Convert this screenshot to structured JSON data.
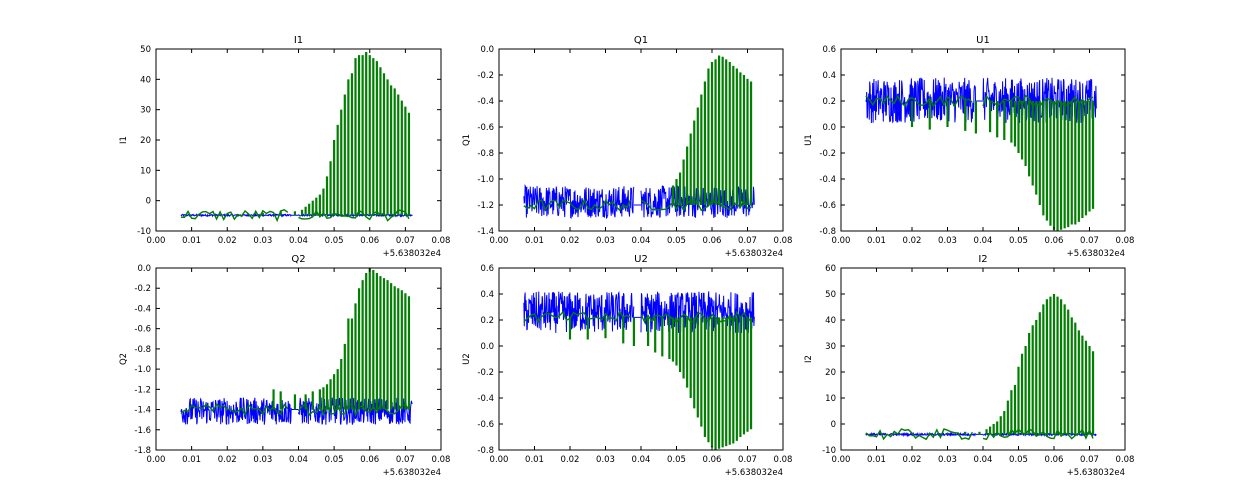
{
  "figure": {
    "x_offset_label": "+5.638032e4"
  },
  "chart_data": [
    {
      "type": "line",
      "title": "I1",
      "ylabel": "I1",
      "xlim": [
        0.0,
        0.08
      ],
      "ylim": [
        -10,
        50
      ],
      "xticks": [
        "0.00",
        "0.01",
        "0.02",
        "0.03",
        "0.04",
        "0.05",
        "0.06",
        "0.07",
        "0.08"
      ],
      "yticks": [
        "-10",
        "0",
        "10",
        "20",
        "30",
        "40",
        "50"
      ],
      "segments": [
        [
          0.007,
          0.038
        ],
        [
          0.04,
          0.072
        ]
      ],
      "series": [
        {
          "color": "#0000ff",
          "baseline": -4.8,
          "low": -5.1,
          "high": -4.5,
          "step": 0.00012,
          "style": "dense"
        },
        {
          "color": "#007f00",
          "baseline": -4.8,
          "step": 0.001,
          "style": "spikes",
          "x": [
            0.03,
            0.035,
            0.039,
            0.041,
            0.042,
            0.043,
            0.044,
            0.045,
            0.046,
            0.047,
            0.048,
            0.049,
            0.05,
            0.051,
            0.052,
            0.053,
            0.054,
            0.055,
            0.056,
            0.057,
            0.058,
            0.059,
            0.06,
            0.061,
            0.062,
            0.063,
            0.064,
            0.065,
            0.066,
            0.067,
            0.068,
            0.069,
            0.07,
            0.071
          ],
          "y": [
            -4,
            -3.5,
            -3.5,
            -3,
            -2,
            -1,
            0,
            1,
            2,
            4,
            8,
            13,
            20,
            25,
            30,
            35,
            40,
            42,
            47,
            48,
            48,
            49,
            48,
            47,
            46,
            44,
            42,
            40,
            38,
            37,
            35,
            33,
            31,
            29
          ]
        }
      ]
    },
    {
      "type": "line",
      "title": "Q1",
      "ylabel": "Q1",
      "xlim": [
        0.0,
        0.08
      ],
      "ylim": [
        -1.4,
        0.0
      ],
      "xticks": [
        "0.00",
        "0.01",
        "0.02",
        "0.03",
        "0.04",
        "0.05",
        "0.06",
        "0.07",
        "0.08"
      ],
      "yticks": [
        "-1.4",
        "-1.2",
        "-1.0",
        "-0.8",
        "-0.6",
        "-0.4",
        "-0.2",
        "0.0"
      ],
      "segments": [
        [
          0.007,
          0.038
        ],
        [
          0.04,
          0.072
        ]
      ],
      "series": [
        {
          "color": "#0000ff",
          "baseline": -1.2,
          "low": -1.3,
          "high": -1.05,
          "step": 0.00012,
          "style": "dense"
        },
        {
          "color": "#007f00",
          "baseline": -1.2,
          "step": 0.001,
          "style": "spikes",
          "x": [
            0.049,
            0.05,
            0.051,
            0.052,
            0.053,
            0.054,
            0.055,
            0.056,
            0.057,
            0.058,
            0.059,
            0.06,
            0.061,
            0.062,
            0.063,
            0.064,
            0.065,
            0.066,
            0.067,
            0.068,
            0.069,
            0.07,
            0.071
          ],
          "y": [
            -1.05,
            -1.0,
            -0.95,
            -0.85,
            -0.75,
            -0.65,
            -0.55,
            -0.45,
            -0.35,
            -0.25,
            -0.15,
            -0.1,
            -0.08,
            -0.05,
            -0.06,
            -0.08,
            -0.1,
            -0.13,
            -0.15,
            -0.18,
            -0.2,
            -0.23,
            -0.25
          ]
        }
      ]
    },
    {
      "type": "line",
      "title": "U1",
      "ylabel": "U1",
      "xlim": [
        0.0,
        0.08
      ],
      "ylim": [
        -0.8,
        0.6
      ],
      "xticks": [
        "0.00",
        "0.01",
        "0.02",
        "0.03",
        "0.04",
        "0.05",
        "0.06",
        "0.07",
        "0.08"
      ],
      "yticks": [
        "-0.8",
        "-0.6",
        "-0.4",
        "-0.2",
        "0.0",
        "0.2",
        "0.4",
        "0.6"
      ],
      "segments": [
        [
          0.007,
          0.038
        ],
        [
          0.04,
          0.072
        ]
      ],
      "series": [
        {
          "color": "#0000ff",
          "baseline": 0.2,
          "low": 0.03,
          "high": 0.38,
          "step": 0.00012,
          "style": "dense"
        },
        {
          "color": "#007f00",
          "baseline": 0.2,
          "step": 0.001,
          "style": "spikes",
          "x": [
            0.02,
            0.025,
            0.03,
            0.035,
            0.038,
            0.042,
            0.044,
            0.046,
            0.048,
            0.049,
            0.05,
            0.051,
            0.052,
            0.053,
            0.054,
            0.055,
            0.056,
            0.057,
            0.058,
            0.059,
            0.06,
            0.061,
            0.062,
            0.063,
            0.064,
            0.065,
            0.066,
            0.067,
            0.068,
            0.069,
            0.07,
            0.071
          ],
          "y": [
            0.0,
            -0.02,
            0.0,
            -0.03,
            -0.05,
            -0.04,
            -0.08,
            -0.1,
            -0.12,
            -0.15,
            -0.2,
            -0.25,
            -0.3,
            -0.38,
            -0.45,
            -0.52,
            -0.6,
            -0.68,
            -0.72,
            -0.76,
            -0.79,
            -0.8,
            -0.79,
            -0.78,
            -0.77,
            -0.75,
            -0.75,
            -0.73,
            -0.7,
            -0.68,
            -0.65,
            -0.63
          ]
        }
      ]
    },
    {
      "type": "line",
      "title": "Q2",
      "ylabel": "Q2",
      "xlim": [
        0.0,
        0.08
      ],
      "ylim": [
        -1.8,
        0.0
      ],
      "xticks": [
        "0.00",
        "0.01",
        "0.02",
        "0.03",
        "0.04",
        "0.05",
        "0.06",
        "0.07",
        "0.08"
      ],
      "yticks": [
        "-1.8",
        "-1.6",
        "-1.4",
        "-1.2",
        "-1.0",
        "-0.8",
        "-0.6",
        "-0.4",
        "-0.2",
        "0.0"
      ],
      "segments": [
        [
          0.007,
          0.038
        ],
        [
          0.04,
          0.072
        ]
      ],
      "series": [
        {
          "color": "#0000ff",
          "baseline": -1.4,
          "low": -1.55,
          "high": -1.28,
          "step": 0.00012,
          "style": "dense"
        },
        {
          "color": "#007f00",
          "baseline": -1.4,
          "step": 0.001,
          "style": "spikes",
          "x": [
            0.033,
            0.035,
            0.039,
            0.042,
            0.044,
            0.046,
            0.047,
            0.048,
            0.049,
            0.05,
            0.051,
            0.052,
            0.053,
            0.054,
            0.055,
            0.056,
            0.057,
            0.058,
            0.059,
            0.06,
            0.061,
            0.062,
            0.063,
            0.064,
            0.065,
            0.066,
            0.067,
            0.068,
            0.069,
            0.07,
            0.071
          ],
          "y": [
            -1.2,
            -1.22,
            -1.25,
            -1.25,
            -1.22,
            -1.2,
            -1.18,
            -1.15,
            -1.1,
            -1.05,
            -1.0,
            -0.9,
            -0.75,
            -0.5,
            -0.5,
            -0.35,
            -0.2,
            -0.12,
            -0.05,
            0.0,
            -0.02,
            -0.05,
            -0.08,
            -0.1,
            -0.12,
            -0.15,
            -0.18,
            -0.2,
            -0.22,
            -0.25,
            -0.28
          ]
        }
      ]
    },
    {
      "type": "line",
      "title": "U2",
      "ylabel": "U2",
      "xlim": [
        0.0,
        0.08
      ],
      "ylim": [
        -0.8,
        0.6
      ],
      "xticks": [
        "0.00",
        "0.01",
        "0.02",
        "0.03",
        "0.04",
        "0.05",
        "0.06",
        "0.07",
        "0.08"
      ],
      "yticks": [
        "-0.8",
        "-0.6",
        "-0.4",
        "-0.2",
        "0.0",
        "0.2",
        "0.4",
        "0.6"
      ],
      "segments": [
        [
          0.007,
          0.038
        ],
        [
          0.04,
          0.072
        ]
      ],
      "series": [
        {
          "color": "#0000ff",
          "baseline": 0.22,
          "low": 0.1,
          "high": 0.42,
          "step": 0.00012,
          "style": "dense"
        },
        {
          "color": "#007f00",
          "baseline": 0.22,
          "step": 0.001,
          "style": "spikes",
          "x": [
            0.02,
            0.025,
            0.03,
            0.035,
            0.038,
            0.042,
            0.044,
            0.046,
            0.048,
            0.049,
            0.05,
            0.051,
            0.052,
            0.053,
            0.054,
            0.055,
            0.056,
            0.057,
            0.058,
            0.059,
            0.06,
            0.061,
            0.062,
            0.063,
            0.064,
            0.065,
            0.066,
            0.067,
            0.068,
            0.069,
            0.07,
            0.071
          ],
          "y": [
            0.05,
            0.05,
            0.06,
            0.02,
            0.0,
            0.0,
            -0.05,
            -0.08,
            -0.1,
            -0.12,
            -0.15,
            -0.2,
            -0.25,
            -0.32,
            -0.4,
            -0.48,
            -0.55,
            -0.62,
            -0.7,
            -0.74,
            -0.78,
            -0.8,
            -0.79,
            -0.78,
            -0.77,
            -0.76,
            -0.75,
            -0.73,
            -0.7,
            -0.68,
            -0.66,
            -0.64
          ]
        }
      ]
    },
    {
      "type": "line",
      "title": "I2",
      "ylabel": "I2",
      "xlim": [
        0.0,
        0.08
      ],
      "ylim": [
        -10,
        60
      ],
      "xticks": [
        "0.00",
        "0.01",
        "0.02",
        "0.03",
        "0.04",
        "0.05",
        "0.06",
        "0.07",
        "0.08"
      ],
      "yticks": [
        "-10",
        "0",
        "10",
        "20",
        "30",
        "40",
        "50",
        "60"
      ],
      "segments": [
        [
          0.007,
          0.038
        ],
        [
          0.04,
          0.072
        ]
      ],
      "series": [
        {
          "color": "#0000ff",
          "baseline": -4,
          "low": -4.4,
          "high": -3.6,
          "step": 0.00012,
          "style": "dense"
        },
        {
          "color": "#007f00",
          "baseline": -4,
          "step": 0.001,
          "style": "spikes",
          "x": [
            0.03,
            0.035,
            0.039,
            0.041,
            0.042,
            0.043,
            0.044,
            0.045,
            0.046,
            0.047,
            0.048,
            0.049,
            0.05,
            0.051,
            0.052,
            0.053,
            0.054,
            0.055,
            0.056,
            0.057,
            0.058,
            0.059,
            0.06,
            0.061,
            0.062,
            0.063,
            0.064,
            0.065,
            0.066,
            0.067,
            0.068,
            0.069,
            0.07,
            0.071
          ],
          "y": [
            -3.5,
            -3,
            -3,
            -2,
            -1,
            0,
            1,
            3,
            5,
            9,
            13,
            15,
            22,
            27,
            30,
            35,
            38,
            40,
            43,
            46,
            48,
            49,
            50,
            49,
            48,
            46,
            44,
            41,
            39,
            36,
            34,
            32,
            30,
            28
          ]
        }
      ]
    }
  ]
}
